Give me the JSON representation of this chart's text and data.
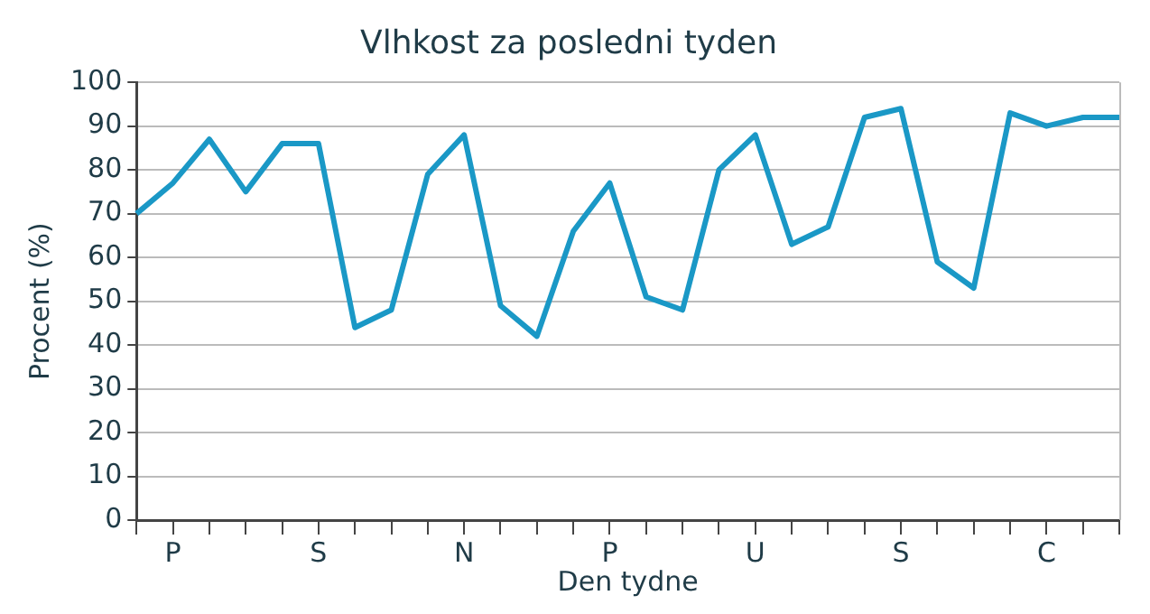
{
  "chart_data": {
    "type": "line",
    "title": "Vlhkost za posledni tyden",
    "xlabel": "Den tydne",
    "ylabel": "Procent (%)",
    "categories": [
      null,
      "P",
      null,
      null,
      null,
      "S",
      null,
      null,
      null,
      "N",
      null,
      null,
      null,
      "P",
      null,
      null,
      null,
      "U",
      null,
      null,
      null,
      "S",
      null,
      null,
      null,
      "C",
      null,
      null
    ],
    "series": [
      {
        "color": "#1a98c6",
        "values": [
          70,
          77,
          87,
          75,
          86,
          86,
          44,
          48,
          79,
          88,
          49,
          42,
          66,
          77,
          51,
          48,
          80,
          88,
          63,
          67,
          92,
          94,
          59,
          53,
          93,
          90,
          92,
          92
        ]
      }
    ],
    "ylim": [
      0,
      100
    ],
    "yticks": [
      0,
      10,
      20,
      30,
      40,
      50,
      60,
      70,
      80,
      90,
      100
    ],
    "grid": "y",
    "legend": false,
    "marker": "none",
    "line_style": "solid"
  }
}
